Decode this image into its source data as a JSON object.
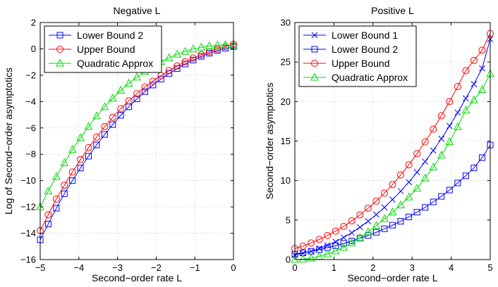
{
  "chart_data": [
    {
      "type": "line",
      "title": "Negative L",
      "xlabel": "Second−order rate L",
      "ylabel": "Log of Second−order asymptotics",
      "xlim": [
        -5,
        0
      ],
      "ylim": [
        -16,
        2
      ],
      "xticks": [
        -5,
        -4,
        -3,
        -2,
        -1,
        0
      ],
      "xtick_labels": [
        "−5",
        "−4",
        "−3",
        "−2",
        "−1",
        "0"
      ],
      "yticks": [
        -16,
        -14,
        -12,
        -10,
        -8,
        -6,
        -4,
        -2,
        0,
        2
      ],
      "ytick_labels": [
        "−16",
        "−14",
        "−12",
        "−10",
        "−8",
        "−6",
        "−4",
        "−2",
        "0",
        "2"
      ],
      "grid": true,
      "legend_position": "top-left",
      "x": [
        -5,
        -4.792,
        -4.583,
        -4.375,
        -4.167,
        -3.958,
        -3.75,
        -3.542,
        -3.333,
        -3.125,
        -2.917,
        -2.708,
        -2.5,
        -2.292,
        -2.083,
        -1.875,
        -1.667,
        -1.458,
        -1.25,
        -1.042,
        -0.833,
        -0.625,
        -0.417,
        -0.208,
        0
      ],
      "series": [
        {
          "name": "Lower Bound 2",
          "color": "#0000ff",
          "marker": "square",
          "values": [
            -14.5,
            -13.3,
            -12.1,
            -11.0,
            -10.0,
            -9.05,
            -8.15,
            -7.3,
            -6.5,
            -5.75,
            -5.05,
            -4.4,
            -3.8,
            -3.25,
            -2.75,
            -2.3,
            -1.88,
            -1.5,
            -1.15,
            -0.85,
            -0.57,
            -0.33,
            -0.13,
            0.04,
            0.18
          ]
        },
        {
          "name": "Upper Bound",
          "color": "#ff0000",
          "marker": "circle",
          "values": [
            -13.8,
            -12.6,
            -11.4,
            -10.35,
            -9.35,
            -8.4,
            -7.5,
            -6.7,
            -5.9,
            -5.2,
            -4.55,
            -3.95,
            -3.4,
            -2.9,
            -2.45,
            -2.03,
            -1.65,
            -1.3,
            -0.98,
            -0.7,
            -0.44,
            -0.22,
            -0.02,
            0.17,
            0.35
          ]
        },
        {
          "name": "Quadratic Approx",
          "color": "#00dd00",
          "marker": "triangle",
          "values": [
            -12.0,
            -10.8,
            -9.7,
            -8.65,
            -7.65,
            -6.75,
            -5.9,
            -5.1,
            -4.4,
            -3.75,
            -3.15,
            -2.62,
            -2.15,
            -1.72,
            -1.33,
            -0.98,
            -0.68,
            -0.42,
            -0.2,
            -0.02,
            0.12,
            0.22,
            0.28,
            0.3,
            0.28
          ]
        }
      ]
    },
    {
      "type": "line",
      "title": "Positive L",
      "xlabel": "Second−order rate L",
      "ylabel": "Second−order asymptotics",
      "xlim": [
        0,
        5
      ],
      "ylim": [
        0,
        30
      ],
      "xticks": [
        0,
        1,
        2,
        3,
        4,
        5
      ],
      "xtick_labels": [
        "0",
        "1",
        "2",
        "3",
        "4",
        "5"
      ],
      "yticks": [
        0,
        5,
        10,
        15,
        20,
        25,
        30
      ],
      "ytick_labels": [
        "0",
        "5",
        "10",
        "15",
        "20",
        "25",
        "30"
      ],
      "grid": true,
      "legend_position": "top-left",
      "x": [
        0,
        0.208,
        0.417,
        0.625,
        0.833,
        1.042,
        1.25,
        1.458,
        1.667,
        1.875,
        2.083,
        2.292,
        2.5,
        2.708,
        2.917,
        3.125,
        3.333,
        3.542,
        3.75,
        3.958,
        4.167,
        4.375,
        4.583,
        4.792,
        5
      ],
      "series": [
        {
          "name": "Lower Bound 1",
          "color": "#0000ff",
          "marker": "x",
          "values": [
            0.6,
            0.8,
            1.05,
            1.4,
            1.8,
            2.25,
            2.8,
            3.4,
            4.1,
            4.85,
            5.7,
            6.6,
            7.6,
            8.65,
            9.8,
            11.05,
            12.4,
            13.8,
            15.3,
            16.9,
            18.6,
            20.4,
            22.2,
            24.2,
            27.9
          ]
        },
        {
          "name": "Lower Bound 2",
          "color": "#0000ff",
          "marker": "square",
          "values": [
            0.7,
            0.85,
            1.05,
            1.25,
            1.5,
            1.75,
            2.05,
            2.35,
            2.7,
            3.05,
            3.45,
            3.9,
            4.35,
            4.85,
            5.4,
            6.0,
            6.6,
            7.3,
            8.0,
            8.8,
            9.7,
            10.6,
            11.6,
            12.9,
            14.5
          ]
        },
        {
          "name": "Upper Bound",
          "color": "#ff0000",
          "marker": "circle",
          "values": [
            1.4,
            1.7,
            2.1,
            2.55,
            3.05,
            3.6,
            4.2,
            4.9,
            5.65,
            6.5,
            7.4,
            8.4,
            9.5,
            10.7,
            12.0,
            13.4,
            14.9,
            16.5,
            18.2,
            20.0,
            21.9,
            23.9,
            25.2,
            26.5,
            28.6
          ]
        },
        {
          "name": "Quadratic Approx",
          "color": "#00dd00",
          "marker": "triangle",
          "values": [
            0.0,
            0.04,
            0.17,
            0.39,
            0.69,
            1.08,
            1.55,
            2.1,
            2.75,
            3.5,
            4.3,
            5.15,
            6.0,
            6.9,
            7.9,
            9.0,
            10.3,
            11.7,
            13.2,
            14.9,
            16.8,
            18.9,
            20.2,
            21.5,
            23.5
          ]
        }
      ]
    }
  ]
}
